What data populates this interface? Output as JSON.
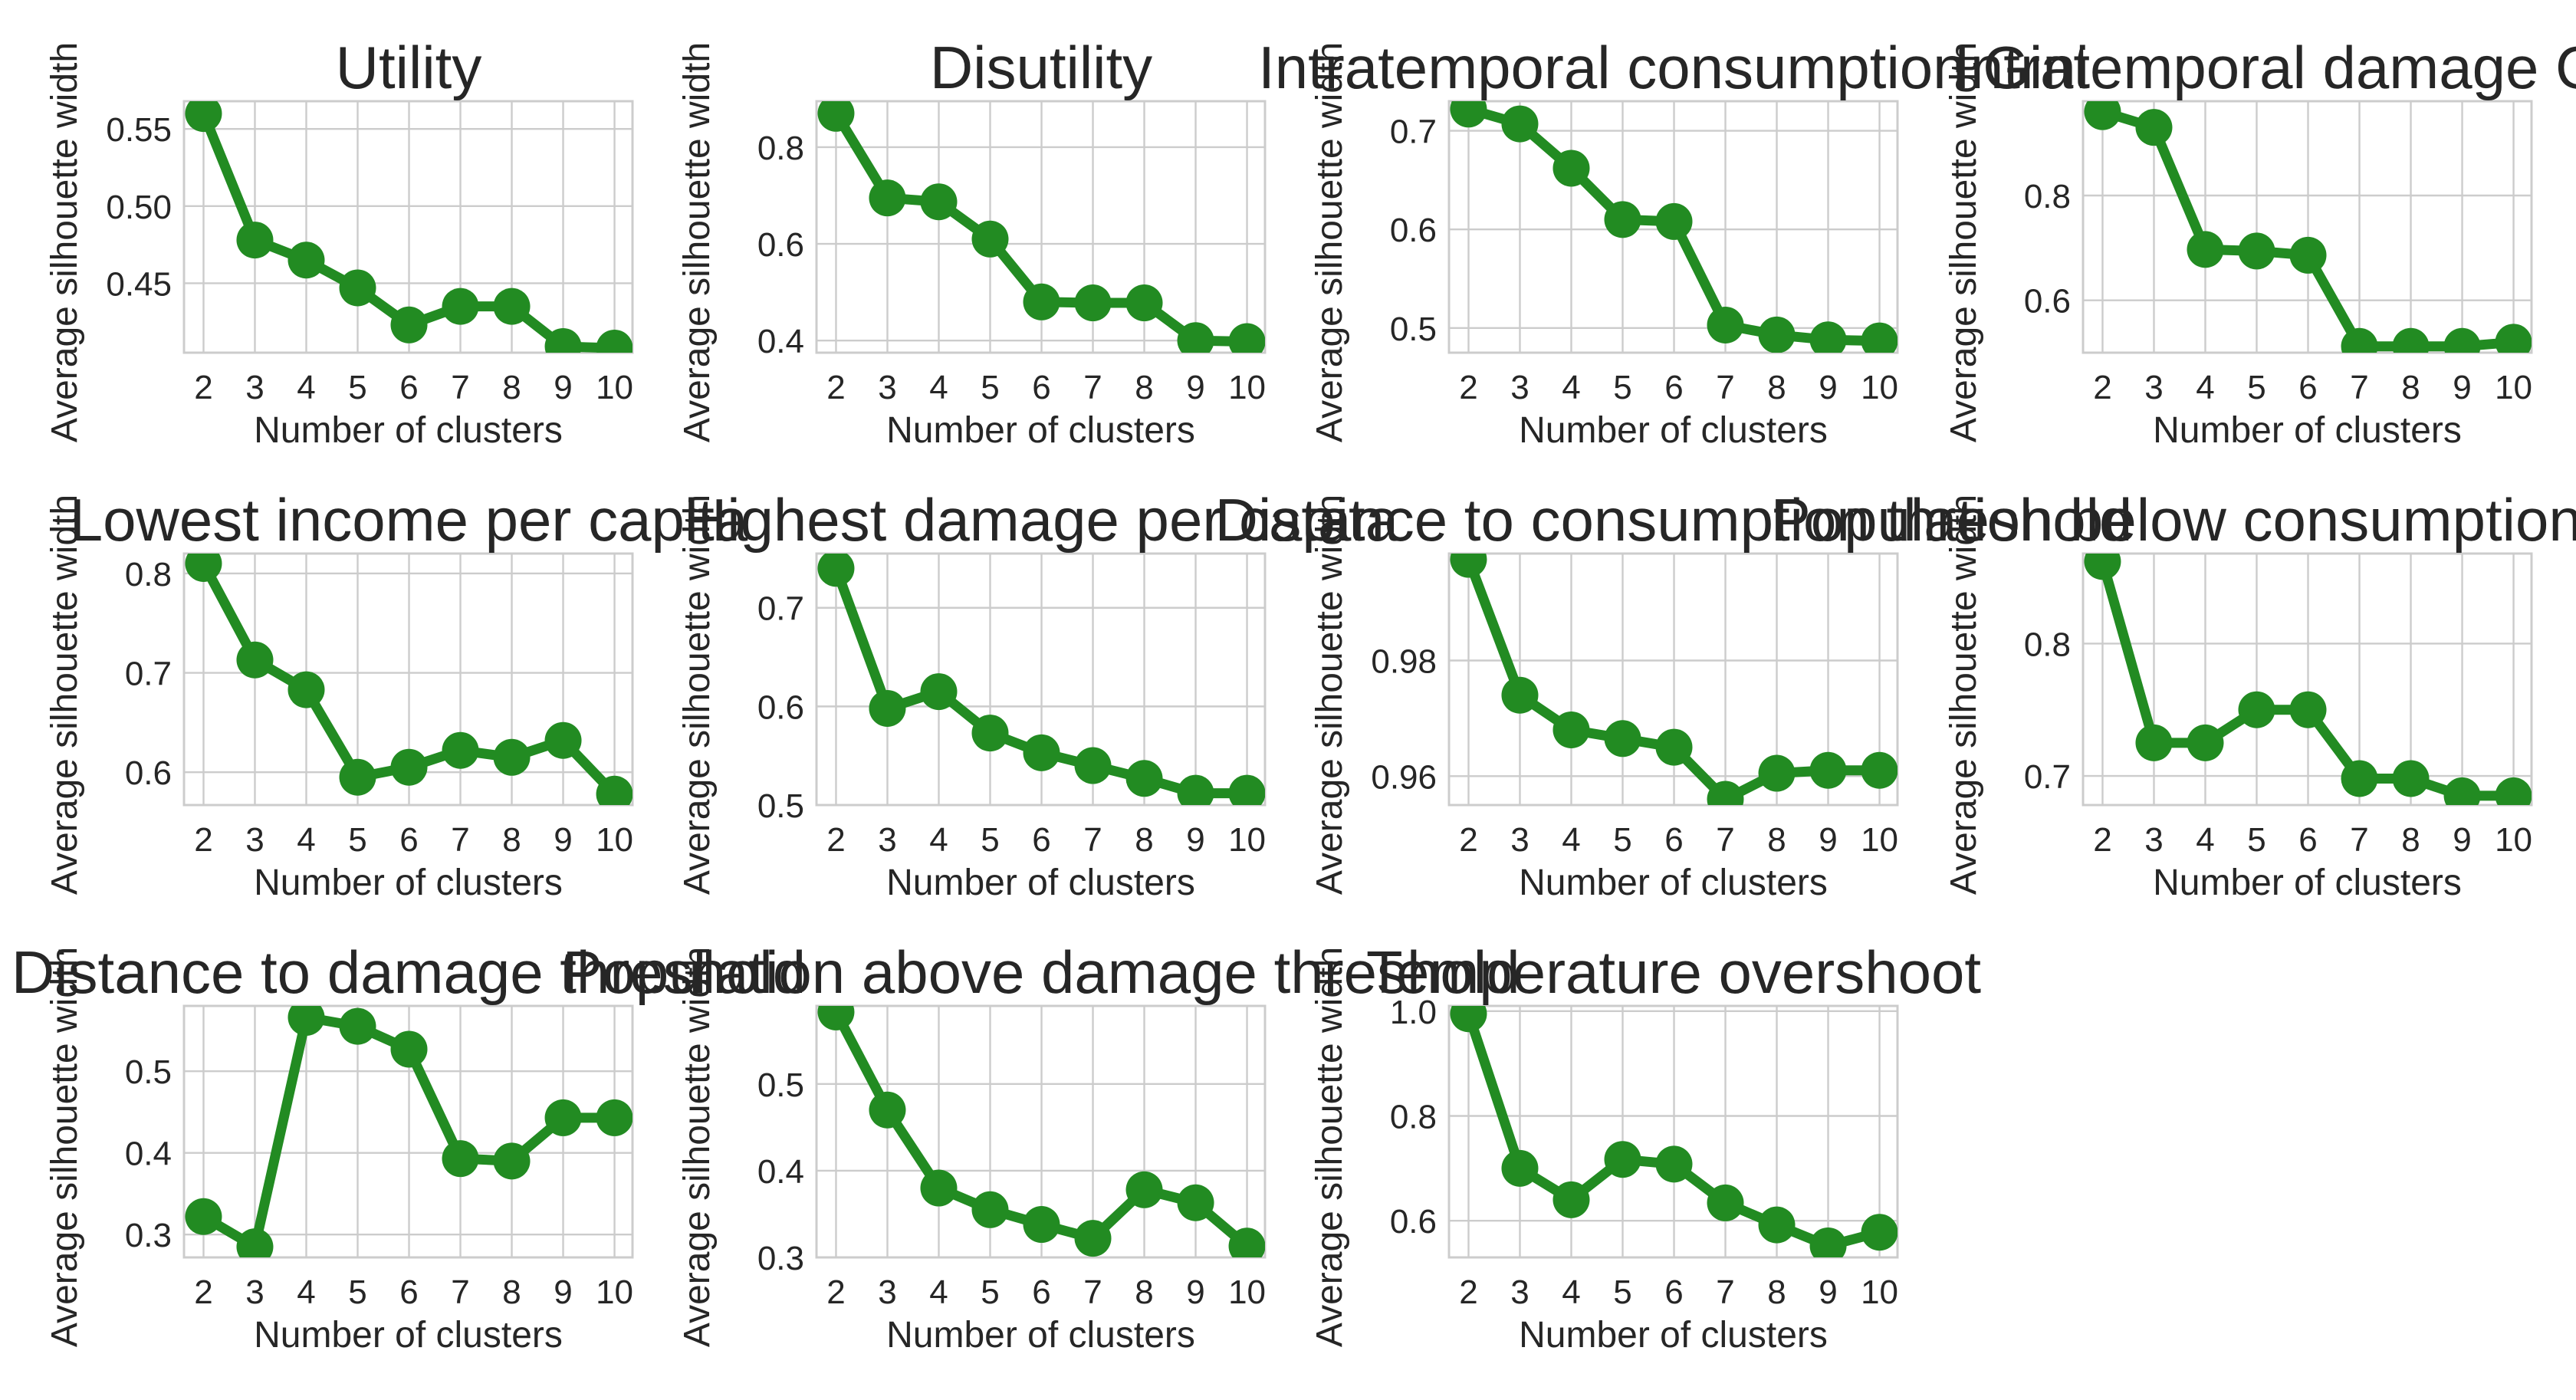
{
  "style": {
    "line_color": "#228b22",
    "grid_color": "#cccccc",
    "background": "#ffffff",
    "text_color": "#262626"
  },
  "chart_data": [
    {
      "type": "line",
      "title": "Utility",
      "xlabel": "Number of clusters",
      "ylabel": "Average silhouette width",
      "x": [
        2,
        3,
        4,
        5,
        6,
        7,
        8,
        9,
        10
      ],
      "values": [
        0.56,
        0.478,
        0.465,
        0.447,
        0.423,
        0.435,
        0.435,
        0.409,
        0.408
      ],
      "ylim": [
        0.405,
        0.568
      ],
      "yticks": [
        0.45,
        0.5,
        0.55
      ],
      "ytick_labels": [
        "0.45",
        "0.50",
        "0.55"
      ],
      "grid": true
    },
    {
      "type": "line",
      "title": "Disutility",
      "xlabel": "Number of clusters",
      "ylabel": "Average silhouette width",
      "x": [
        2,
        3,
        4,
        5,
        6,
        7,
        8,
        9,
        10
      ],
      "values": [
        0.87,
        0.695,
        0.687,
        0.61,
        0.48,
        0.478,
        0.478,
        0.4,
        0.398
      ],
      "ylim": [
        0.375,
        0.895
      ],
      "yticks": [
        0.4,
        0.6,
        0.8
      ],
      "ytick_labels": [
        "0.4",
        "0.6",
        "0.8"
      ],
      "grid": true
    },
    {
      "type": "line",
      "title": "Intratemporal consumption Gini",
      "xlabel": "Number of clusters",
      "ylabel": "Average silhouette width",
      "x": [
        2,
        3,
        4,
        5,
        6,
        7,
        8,
        9,
        10
      ],
      "values": [
        0.722,
        0.707,
        0.662,
        0.61,
        0.608,
        0.503,
        0.493,
        0.488,
        0.487
      ],
      "ylim": [
        0.475,
        0.73
      ],
      "yticks": [
        0.5,
        0.6,
        0.7
      ],
      "ytick_labels": [
        "0.5",
        "0.6",
        "0.7"
      ],
      "grid": true
    },
    {
      "type": "line",
      "title": "Intratemporal damage Gini",
      "xlabel": "Number of clusters",
      "ylabel": "Average silhouette width",
      "x": [
        2,
        3,
        4,
        5,
        6,
        7,
        8,
        9,
        10
      ],
      "values": [
        0.96,
        0.93,
        0.697,
        0.694,
        0.686,
        0.512,
        0.512,
        0.512,
        0.52
      ],
      "ylim": [
        0.5,
        0.98
      ],
      "yticks": [
        0.6,
        0.8
      ],
      "ytick_labels": [
        "0.6",
        "0.8"
      ],
      "grid": true
    },
    {
      "type": "line",
      "title": "Lowest income per capita",
      "xlabel": "Number of clusters",
      "ylabel": "Average silhouette width",
      "x": [
        2,
        3,
        4,
        5,
        6,
        7,
        8,
        9,
        10
      ],
      "values": [
        0.81,
        0.713,
        0.683,
        0.595,
        0.605,
        0.622,
        0.615,
        0.632,
        0.578
      ],
      "ylim": [
        0.567,
        0.82
      ],
      "yticks": [
        0.6,
        0.7,
        0.8
      ],
      "ytick_labels": [
        "0.6",
        "0.7",
        "0.8"
      ],
      "grid": true
    },
    {
      "type": "line",
      "title": "Highest damage per capita",
      "xlabel": "Number of clusters",
      "ylabel": "Average silhouette width",
      "x": [
        2,
        3,
        4,
        5,
        6,
        7,
        8,
        9,
        10
      ],
      "values": [
        0.74,
        0.598,
        0.615,
        0.573,
        0.553,
        0.54,
        0.527,
        0.512,
        0.512
      ],
      "ylim": [
        0.5,
        0.755
      ],
      "yticks": [
        0.5,
        0.6,
        0.7
      ],
      "ytick_labels": [
        "0.5",
        "0.6",
        "0.7"
      ],
      "grid": true
    },
    {
      "type": "line",
      "title": "Distance to consumption threshold",
      "xlabel": "Number of clusters",
      "ylabel": "Average silhouette width",
      "x": [
        2,
        3,
        4,
        5,
        6,
        7,
        8,
        9,
        10
      ],
      "values": [
        0.9975,
        0.974,
        0.968,
        0.9665,
        0.965,
        0.956,
        0.9605,
        0.961,
        0.961
      ],
      "ylim": [
        0.955,
        0.9985
      ],
      "yticks": [
        0.96,
        0.98
      ],
      "ytick_labels": [
        "0.96",
        "0.98"
      ],
      "grid": true
    },
    {
      "type": "line",
      "title": "Population below consumption threshold",
      "xlabel": "Number of clusters",
      "ylabel": "Average silhouette width",
      "x": [
        2,
        3,
        4,
        5,
        6,
        7,
        8,
        9,
        10
      ],
      "values": [
        0.862,
        0.725,
        0.725,
        0.75,
        0.75,
        0.698,
        0.698,
        0.685,
        0.685
      ],
      "ylim": [
        0.678,
        0.868
      ],
      "yticks": [
        0.7,
        0.8
      ],
      "ytick_labels": [
        "0.7",
        "0.8"
      ],
      "grid": true
    },
    {
      "type": "line",
      "title": "Distance to damage threshold",
      "xlabel": "Number of clusters",
      "ylabel": "Average silhouette width",
      "x": [
        2,
        3,
        4,
        5,
        6,
        7,
        8,
        9,
        10
      ],
      "values": [
        0.322,
        0.285,
        0.566,
        0.555,
        0.527,
        0.393,
        0.39,
        0.443,
        0.443
      ],
      "ylim": [
        0.272,
        0.58
      ],
      "yticks": [
        0.3,
        0.4,
        0.5
      ],
      "ytick_labels": [
        "0.3",
        "0.4",
        "0.5"
      ],
      "grid": true
    },
    {
      "type": "line",
      "title": "Population above damage threshold",
      "xlabel": "Number of clusters",
      "ylabel": "Average silhouette width",
      "x": [
        2,
        3,
        4,
        5,
        6,
        7,
        8,
        9,
        10
      ],
      "values": [
        0.583,
        0.47,
        0.38,
        0.355,
        0.338,
        0.322,
        0.378,
        0.363,
        0.313
      ],
      "ylim": [
        0.3,
        0.59
      ],
      "yticks": [
        0.3,
        0.4,
        0.5
      ],
      "ytick_labels": [
        "0.3",
        "0.4",
        "0.5"
      ],
      "grid": true
    },
    {
      "type": "line",
      "title": "Temperature overshoot",
      "xlabel": "Number of clusters",
      "ylabel": "Average silhouette width",
      "x": [
        2,
        3,
        4,
        5,
        6,
        7,
        8,
        9,
        10
      ],
      "values": [
        0.995,
        0.7,
        0.64,
        0.717,
        0.708,
        0.634,
        0.592,
        0.552,
        0.578
      ],
      "ylim": [
        0.53,
        1.01
      ],
      "yticks": [
        0.6,
        0.8,
        1.0
      ],
      "ytick_labels": [
        "0.6",
        "0.8",
        "1.0"
      ],
      "grid": true
    }
  ]
}
